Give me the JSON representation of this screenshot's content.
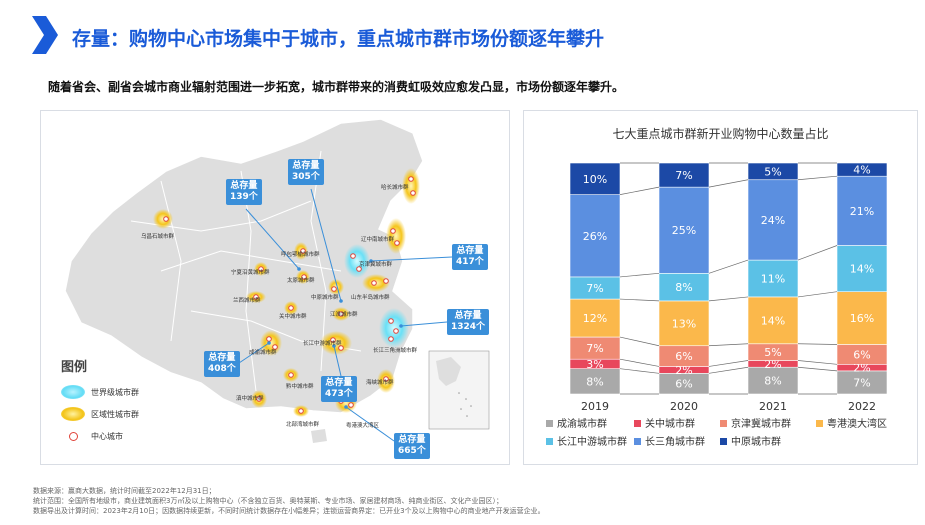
{
  "header": {
    "title": "存量：购物中心市场集中于城市，重点城市群市场份额逐年攀升",
    "subtitle": "随着省会、副省会城市商业辐射范围进一步拓宽，城市群带来的消费虹吸效应愈发凸显，市场份额逐年攀升。",
    "accent_color": "#1a5bd8"
  },
  "map": {
    "legend_title": "图例",
    "legend": {
      "world_cluster": "世界级城市群",
      "regional_cluster": "区域性城市群",
      "center_city": "中心城市"
    },
    "callout_prefix": "总存量",
    "callouts": [
      {
        "id": "c139",
        "value": "139个"
      },
      {
        "id": "c305",
        "value": "305个"
      },
      {
        "id": "c417",
        "value": "417个"
      },
      {
        "id": "c1324",
        "value": "1324个"
      },
      {
        "id": "c408",
        "value": "408个"
      },
      {
        "id": "c473",
        "value": "473个"
      },
      {
        "id": "c665",
        "value": "665个"
      }
    ],
    "labels": [
      {
        "id": "hachang",
        "text": "哈长城市群"
      },
      {
        "id": "wulumuqi",
        "text": "乌昌石城市群"
      },
      {
        "id": "huhe",
        "text": "呼包鄂榆城市群"
      },
      {
        "id": "jingjinji",
        "text": "京津冀城市群"
      },
      {
        "id": "liaozhong",
        "text": "辽中南城市群"
      },
      {
        "id": "ningxia",
        "text": "宁夏沿黄城市群"
      },
      {
        "id": "taiyuan",
        "text": "太原城市群"
      },
      {
        "id": "shandong",
        "text": "山东半岛城市群"
      },
      {
        "id": "lanxi",
        "text": "兰西城市群"
      },
      {
        "id": "zhongyuan",
        "text": "中原城市群"
      },
      {
        "id": "guanzhong",
        "text": "关中城市群"
      },
      {
        "id": "jianghuai",
        "text": "江淮城市群"
      },
      {
        "id": "chengyu",
        "text": "成渝城市群"
      },
      {
        "id": "changjiangzhongyou",
        "text": "长江中游城市群"
      },
      {
        "id": "changsanjiao",
        "text": "长江三角洲城市群"
      },
      {
        "id": "qianzhong",
        "text": "黔中城市群"
      },
      {
        "id": "haixia",
        "text": "海峡城市群"
      },
      {
        "id": "dianzhong",
        "text": "滇中城市群"
      },
      {
        "id": "beibuwan",
        "text": "北部湾城市群"
      },
      {
        "id": "yuegang",
        "text": "粤港澳大湾区"
      }
    ]
  },
  "chart_data": {
    "type": "bar",
    "stacked": true,
    "title": "七大重点城市群新开业购物中心数量占比",
    "categories": [
      "2019",
      "2020",
      "2021",
      "2022"
    ],
    "unit": "%",
    "ylim": [
      0,
      100
    ],
    "legend_position": "bottom",
    "series": [
      {
        "name": "成渝城市群",
        "color": "#a9a9a9",
        "values": [
          8,
          6,
          8,
          7
        ]
      },
      {
        "name": "关中城市群",
        "color": "#e8475c",
        "values": [
          3,
          2,
          2,
          2
        ]
      },
      {
        "name": "京津冀城市群",
        "color": "#ef8a73",
        "values": [
          7,
          6,
          5,
          6
        ]
      },
      {
        "name": "粤港澳大湾区",
        "color": "#fbb84b",
        "values": [
          12,
          13,
          14,
          16
        ]
      },
      {
        "name": "长江中游城市群",
        "color": "#5bc1e6",
        "values": [
          7,
          8,
          11,
          14
        ]
      },
      {
        "name": "长三角城市群",
        "color": "#5b8fe0",
        "values": [
          26,
          25,
          24,
          21
        ]
      },
      {
        "name": "中原城市群",
        "color": "#1c49a6",
        "values": [
          10,
          7,
          5,
          4
        ]
      }
    ]
  },
  "notes": [
    "数据来源：赢商大数据，统计时间截至2022年12月31日；",
    "统计范围：全国所有地级市，商业建筑面积3万㎡及以上购物中心（不含独立百货、奥特莱斯、专业市场、家居建材商场、纯商业街区、文化产业园区）；",
    "数据导出及计算时间：2023年2月10日；因数据持续更新，不同时间统计数据存在小幅差异；连锁运营商界定：已开业3个及以上购物中心的商业地产开发运营企业。"
  ]
}
